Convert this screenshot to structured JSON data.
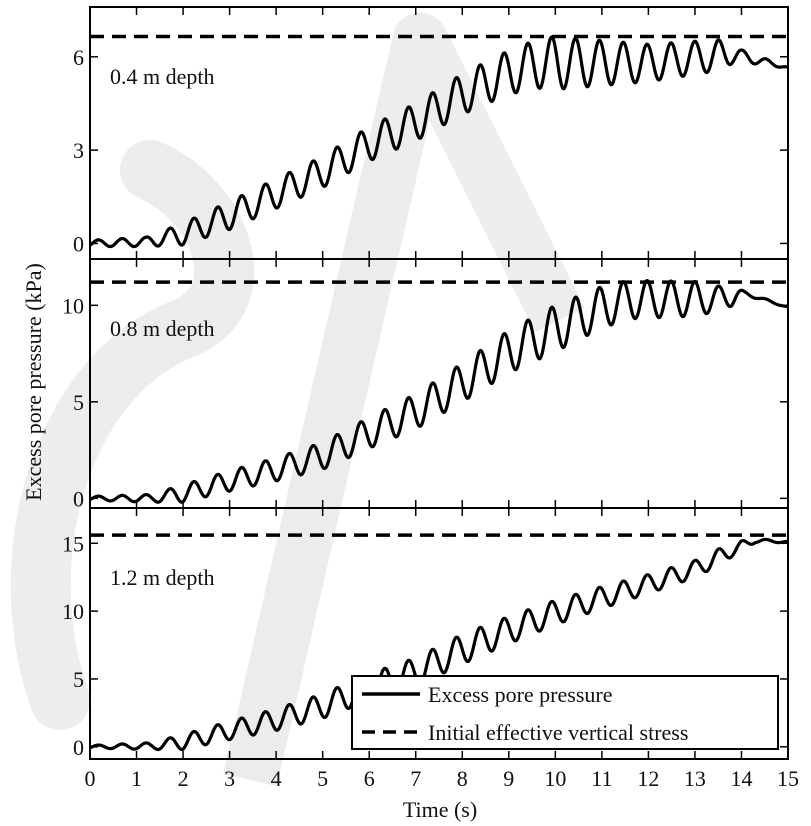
{
  "chart_data": {
    "type": "line",
    "xlabel": "Time (s)",
    "ylabel": "Excess pore pressure (kPa)",
    "xlim": [
      0,
      15
    ],
    "xticks": [
      0,
      1,
      2,
      3,
      4,
      5,
      6,
      7,
      8,
      9,
      10,
      11,
      12,
      13,
      14,
      15
    ],
    "legend": {
      "placement": "bottom-right of lowest panel",
      "entries": [
        {
          "label": "Excess pore pressure",
          "style": "solid"
        },
        {
          "label": "Initial effective vertical stress",
          "style": "dashed"
        }
      ]
    },
    "panels": [
      {
        "label": "0.4 m depth",
        "ylim": [
          -0.5,
          7.6
        ],
        "yticks": [
          0,
          3,
          6
        ],
        "initial_effective_vertical_stress": 6.65,
        "trend": [
          [
            0,
            0
          ],
          [
            1.2,
            0.05
          ],
          [
            2.0,
            0.3
          ],
          [
            3.0,
            0.9
          ],
          [
            4.0,
            1.6
          ],
          [
            5.0,
            2.3
          ],
          [
            6.0,
            3.2
          ],
          [
            7.0,
            3.9
          ],
          [
            8.0,
            4.8
          ],
          [
            9.0,
            5.5
          ],
          [
            9.7,
            5.8
          ],
          [
            12.0,
            5.8
          ],
          [
            13.8,
            6.1
          ],
          [
            14.2,
            5.95
          ],
          [
            15.0,
            5.65
          ]
        ],
        "amplitude": [
          [
            0,
            0.1
          ],
          [
            1.2,
            0.15
          ],
          [
            2.0,
            0.35
          ],
          [
            3.0,
            0.45
          ],
          [
            5.0,
            0.5
          ],
          [
            7.0,
            0.6
          ],
          [
            9.0,
            0.7
          ],
          [
            10.0,
            0.85
          ],
          [
            12.0,
            0.6
          ],
          [
            13.5,
            0.5
          ],
          [
            14.0,
            0.2
          ],
          [
            15.0,
            0.02
          ]
        ]
      },
      {
        "label": "0.8 m depth",
        "ylim": [
          -0.5,
          12.4
        ],
        "yticks": [
          0,
          5,
          10
        ],
        "initial_effective_vertical_stress": 11.2,
        "trend": [
          [
            0,
            0
          ],
          [
            1.3,
            0.0
          ],
          [
            2.0,
            0.25
          ],
          [
            3.0,
            0.9
          ],
          [
            4.0,
            1.5
          ],
          [
            5.0,
            2.2
          ],
          [
            6.0,
            3.4
          ],
          [
            7.0,
            4.5
          ],
          [
            8.0,
            6.0
          ],
          [
            9.0,
            7.6
          ],
          [
            10.0,
            8.8
          ],
          [
            11.0,
            9.9
          ],
          [
            11.6,
            10.3
          ],
          [
            13.5,
            10.35
          ],
          [
            14.1,
            10.6
          ],
          [
            15.0,
            9.9
          ]
        ],
        "amplitude": [
          [
            0,
            0.1
          ],
          [
            1.3,
            0.2
          ],
          [
            2.0,
            0.45
          ],
          [
            4.0,
            0.6
          ],
          [
            6.0,
            0.8
          ],
          [
            8.0,
            1.0
          ],
          [
            10.0,
            1.2
          ],
          [
            11.6,
            1.0
          ],
          [
            13.0,
            0.9
          ],
          [
            13.8,
            0.5
          ],
          [
            14.1,
            0.1
          ],
          [
            15.0,
            0.02
          ]
        ]
      },
      {
        "label": "1.2 m depth",
        "ylim": [
          -0.9,
          17.6
        ],
        "yticks": [
          0,
          5,
          10,
          15
        ],
        "initial_effective_vertical_stress": 15.6,
        "trend": [
          [
            0,
            0
          ],
          [
            1.3,
            0.05
          ],
          [
            2.0,
            0.35
          ],
          [
            3.0,
            1.2
          ],
          [
            4.0,
            2.0
          ],
          [
            5.0,
            3.0
          ],
          [
            6.0,
            4.4
          ],
          [
            7.0,
            5.5
          ],
          [
            8.0,
            7.2
          ],
          [
            9.0,
            8.6
          ],
          [
            10.0,
            9.9
          ],
          [
            11.0,
            11.0
          ],
          [
            12.0,
            12.0
          ],
          [
            13.0,
            13.1
          ],
          [
            13.8,
            14.5
          ],
          [
            14.3,
            15.2
          ],
          [
            15.0,
            15.1
          ]
        ],
        "amplitude": [
          [
            0,
            0.1
          ],
          [
            1.3,
            0.25
          ],
          [
            2.0,
            0.55
          ],
          [
            4.0,
            0.8
          ],
          [
            6.0,
            1.0
          ],
          [
            8.0,
            1.1
          ],
          [
            10.0,
            0.9
          ],
          [
            12.0,
            0.7
          ],
          [
            13.5,
            0.6
          ],
          [
            14.0,
            0.4
          ],
          [
            14.3,
            0.15
          ],
          [
            15.0,
            0.05
          ]
        ]
      }
    ]
  }
}
